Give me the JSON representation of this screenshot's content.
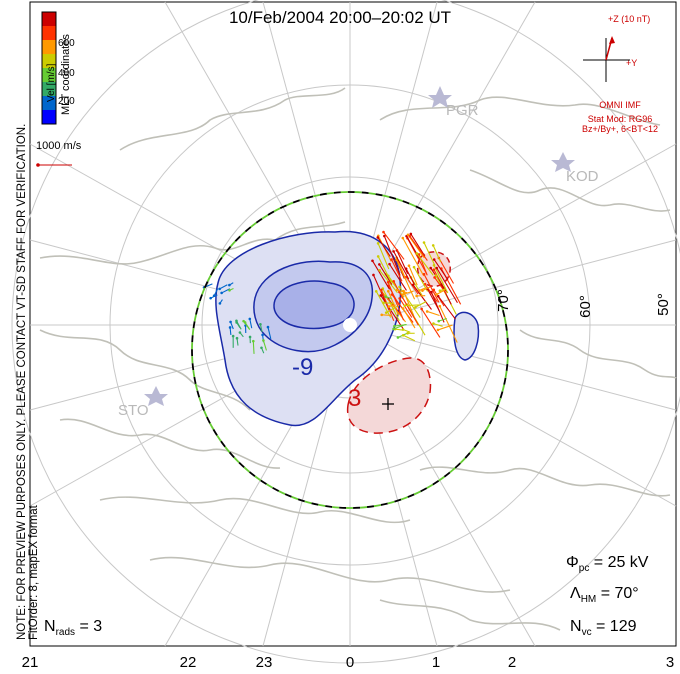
{
  "title": "10/Feb/2004 20:00–20:02 UT",
  "notes": {
    "line1": "NOTE: FOR PREVIEW PURPOSES ONLY. PLEASE CONTACT VT-SD STAFF FOR VERIFICATION.",
    "line2": "FitOrder: 8, mapEX format",
    "coords": "MLT coordinates"
  },
  "colorbar": {
    "label": "Vel [m/s]",
    "ticks": [
      "600",
      "400",
      "200"
    ],
    "colors": [
      "#0000ff",
      "#0066cc",
      "#33aa66",
      "#66cc33",
      "#cccc00",
      "#ff9900",
      "#ff3300",
      "#cc0000"
    ]
  },
  "scale": {
    "label": "1000 m/s"
  },
  "imf": {
    "z_label": "+Z (10 nT)",
    "y_label": "+Y",
    "source": "OMNI IMF",
    "model": "Stat Mod: RG96",
    "condition": "Bz+/By+, 6<BT<12"
  },
  "stations": [
    "PGR",
    "KOD",
    "STO"
  ],
  "latitudes": [
    "70°",
    "60°",
    "50°"
  ],
  "mlt_labels": [
    "21",
    "22",
    "23",
    "0",
    "1",
    "2",
    "3"
  ],
  "contour_labels": {
    "negative": "-9",
    "positive": "3"
  },
  "stats": {
    "phi_pc": "25 kV",
    "lambda_hm": "70°",
    "n_vc": "129",
    "n_rads": "3"
  },
  "colors": {
    "negative": "#1a2aa8",
    "positive": "#cc1111",
    "boundary_dash_a": "#000000",
    "boundary_dash_b": "#66cc33"
  }
}
